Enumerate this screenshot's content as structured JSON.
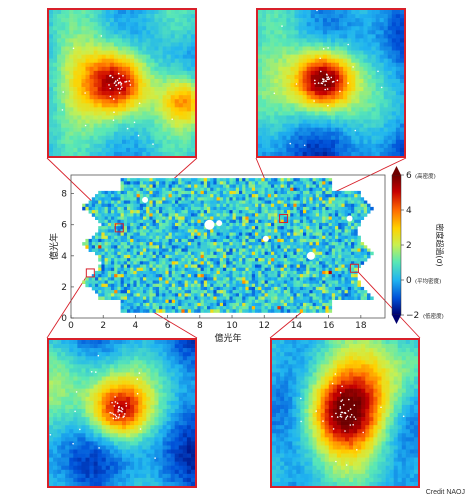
{
  "chart_data": {
    "type": "heatmap",
    "title": "",
    "xlabel": "億光年",
    "ylabel": "億光年",
    "xlim": [
      0,
      19.5
    ],
    "ylim": [
      0,
      9.2
    ],
    "x_ticks": [
      "0",
      "2",
      "4",
      "6",
      "8",
      "10",
      "12",
      "14",
      "16",
      "18"
    ],
    "y_ticks": [
      "0",
      "2",
      "4",
      "6",
      "8"
    ],
    "colorbar": {
      "label": "密度超過(σ)",
      "range": [
        -2,
        6
      ],
      "ticks": [
        "−2",
        "0",
        "2",
        "4",
        "6"
      ],
      "annotations": {
        "top": "(高密度)",
        "middle": "(平均密度)",
        "bottom": "(低密度)"
      },
      "colors": [
        "#00006e",
        "#0050d8",
        "#20b4f0",
        "#5ae8b4",
        "#c8f050",
        "#ffd200",
        "#ff6a00",
        "#c80000",
        "#6e0000"
      ]
    },
    "highlighted_regions": [
      {
        "x": 3.0,
        "y": 5.8,
        "label": ""
      },
      {
        "x": 13.2,
        "y": 6.4,
        "label": ""
      },
      {
        "x": 1.2,
        "y": 2.9,
        "label": ""
      },
      {
        "x": 17.6,
        "y": 3.2,
        "label": ""
      }
    ]
  },
  "credit": "Credit NAOJ",
  "colors": {
    "accent": "#d8202a"
  }
}
